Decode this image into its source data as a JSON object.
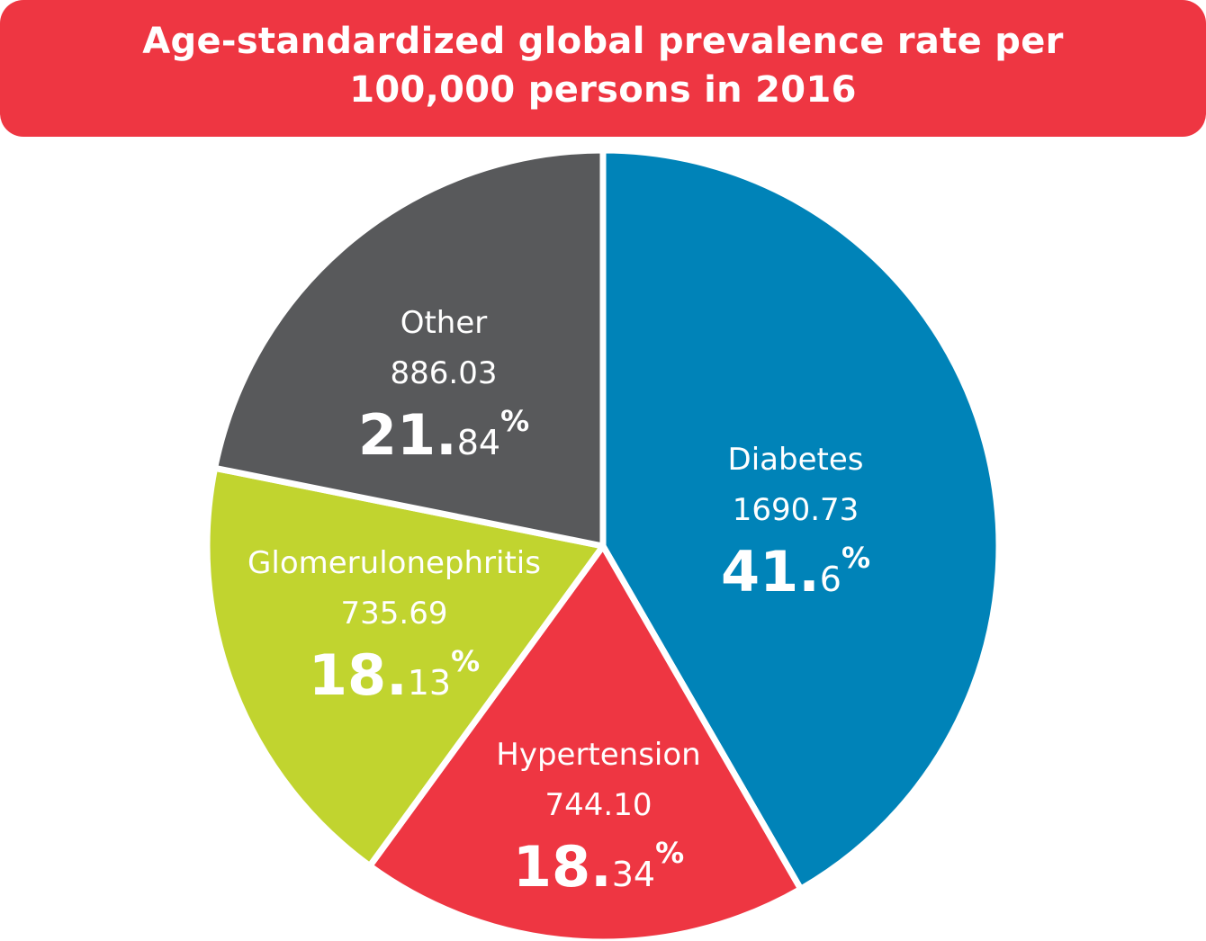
{
  "title": {
    "line1": "Age-standardized global prevalence rate per",
    "line2": "100,000 persons in 2016"
  },
  "chart_data": {
    "type": "pie",
    "title": "Age-standardized global prevalence rate per 100,000 persons in 2016",
    "slices": [
      {
        "key": "diabetes",
        "name": "Diabetes",
        "value": 1690.73,
        "value_label": "1690.73",
        "percent": 41.6,
        "pct_int": "41",
        "pct_dec": "6",
        "pct_sym": "%",
        "color": "#0083b8"
      },
      {
        "key": "hypertension",
        "name": "Hypertension",
        "value": 744.1,
        "value_label": "744.10",
        "percent": 18.34,
        "pct_int": "18",
        "pct_dec": "34",
        "pct_sym": "%",
        "color": "#ee3642"
      },
      {
        "key": "glomerulonephritis",
        "name": "Glomerulonephritis",
        "value": 735.69,
        "value_label": "735.69",
        "percent": 18.13,
        "pct_int": "18",
        "pct_dec": "13",
        "pct_sym": "%",
        "color": "#c1d42f"
      },
      {
        "key": "other",
        "name": "Other",
        "value": 886.03,
        "value_label": "886.03",
        "percent": 21.84,
        "pct_int": "21",
        "pct_dec": "84",
        "pct_sym": "%",
        "color": "#58595b"
      }
    ],
    "start_angle": "12 o'clock",
    "direction": "clockwise",
    "legend": "none"
  }
}
